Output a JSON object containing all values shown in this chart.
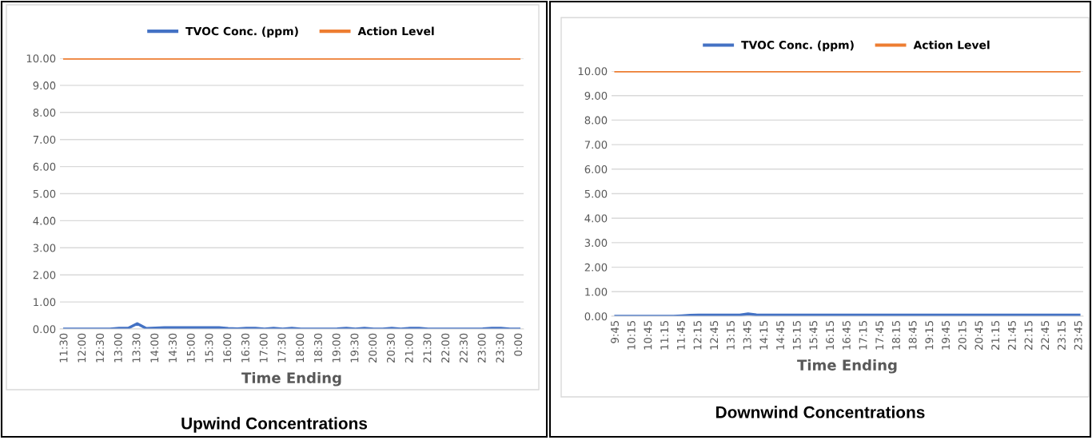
{
  "chart_data": [
    {
      "type": "line",
      "title": "Upwind Concentrations",
      "xlabel": "Time Ending",
      "categories": [
        "11:30",
        null,
        "12:00",
        null,
        "12:30",
        null,
        "13:00",
        null,
        "13:30",
        null,
        "14:00",
        null,
        "14:30",
        null,
        "15:00",
        null,
        "15:30",
        null,
        "16:00",
        null,
        "16:30",
        null,
        "17:00",
        null,
        "17:30",
        null,
        "18:00",
        null,
        "18:30",
        null,
        "19:00",
        null,
        "19:30",
        null,
        "20:00",
        null,
        "20:30",
        null,
        "21:00",
        null,
        "21:30",
        null,
        "22:00",
        null,
        "22:30",
        null,
        "23:00",
        null,
        "23:30",
        null,
        "0:00"
      ],
      "series": [
        {
          "name": "TVOC Conc. (ppm)",
          "color": "#4472c4",
          "values": [
            0,
            0,
            0,
            0,
            0,
            0,
            0.03,
            0.03,
            0.2,
            0.02,
            0.04,
            0.05,
            0.05,
            0.05,
            0.05,
            0.05,
            0.05,
            0.05,
            0.02,
            0.01,
            0.03,
            0.03,
            0,
            0.03,
            0,
            0.03,
            0,
            0,
            0,
            0,
            0.01,
            0.03,
            0,
            0.03,
            0,
            0,
            0.03,
            0,
            0.03,
            0.03,
            0,
            0,
            0,
            0,
            0,
            0,
            0.01,
            0.03,
            0.03,
            0,
            0
          ]
        },
        {
          "name": "Action Level",
          "color": "#ed7d31",
          "values": [
            10,
            10,
            10,
            10,
            10,
            10,
            10,
            10,
            10,
            10,
            10,
            10,
            10,
            10,
            10,
            10,
            10,
            10,
            10,
            10,
            10,
            10,
            10,
            10,
            10,
            10,
            10,
            10,
            10,
            10,
            10,
            10,
            10,
            10,
            10,
            10,
            10,
            10,
            10,
            10,
            10,
            10,
            10,
            10,
            10,
            10,
            10,
            10,
            10,
            10,
            10
          ]
        }
      ],
      "ylim": [
        0,
        10
      ],
      "yticks": [
        {
          "value": 0,
          "label": "0.00"
        },
        {
          "value": 1,
          "label": "1.00"
        },
        {
          "value": 2,
          "label": "2.00"
        },
        {
          "value": 3,
          "label": "3.00"
        },
        {
          "value": 4,
          "label": "4.00"
        },
        {
          "value": 5,
          "label": "5.00"
        },
        {
          "value": 6,
          "label": "6.00"
        },
        {
          "value": 7,
          "label": "7.00"
        },
        {
          "value": 8,
          "label": "8.00"
        },
        {
          "value": 9,
          "label": "9.00"
        },
        {
          "value": 10,
          "label": "10.00"
        }
      ],
      "grid": "y",
      "legend": "top",
      "marker": "none",
      "line_style": "solid"
    },
    {
      "type": "line",
      "title": "Downwind Concentrations",
      "xlabel": "Time Ending",
      "categories": [
        "9:45",
        null,
        "10:15",
        null,
        "10:45",
        null,
        "11:15",
        null,
        "11:45",
        null,
        "12:15",
        null,
        "12:45",
        null,
        "13:15",
        null,
        "13:45",
        null,
        "14:15",
        null,
        "14:45",
        null,
        "15:15",
        null,
        "15:45",
        null,
        "16:15",
        null,
        "16:45",
        null,
        "17:15",
        null,
        "17:45",
        null,
        "18:15",
        null,
        "18:45",
        null,
        "19:15",
        null,
        "19:45",
        null,
        "20:15",
        null,
        "20:45",
        null,
        "21:15",
        null,
        "21:45",
        null,
        "22:15",
        null,
        "22:45",
        null,
        "23:15",
        null,
        "23:45"
      ],
      "series": [
        {
          "name": "TVOC Conc. (ppm)",
          "color": "#4472c4",
          "values": [
            0,
            0,
            0,
            0,
            0,
            0,
            0,
            0,
            0.02,
            0.04,
            0.05,
            0.05,
            0.05,
            0.05,
            0.05,
            0.05,
            0.1,
            0.06,
            0.05,
            0.05,
            0.05,
            0.05,
            0.05,
            0.05,
            0.05,
            0.05,
            0.05,
            0.05,
            0.05,
            0.05,
            0.05,
            0.05,
            0.05,
            0.05,
            0.05,
            0.05,
            0.05,
            0.05,
            0.05,
            0.05,
            0.05,
            0.05,
            0.05,
            0.05,
            0.05,
            0.05,
            0.05,
            0.05,
            0.05,
            0.05,
            0.05,
            0.05,
            0.05,
            0.05,
            0.05,
            0.05,
            0.05
          ]
        },
        {
          "name": "Action Level",
          "color": "#ed7d31",
          "values": [
            10,
            10,
            10,
            10,
            10,
            10,
            10,
            10,
            10,
            10,
            10,
            10,
            10,
            10,
            10,
            10,
            10,
            10,
            10,
            10,
            10,
            10,
            10,
            10,
            10,
            10,
            10,
            10,
            10,
            10,
            10,
            10,
            10,
            10,
            10,
            10,
            10,
            10,
            10,
            10,
            10,
            10,
            10,
            10,
            10,
            10,
            10,
            10,
            10,
            10,
            10,
            10,
            10,
            10,
            10,
            10,
            10
          ]
        }
      ],
      "ylim": [
        0,
        10
      ],
      "yticks": [
        {
          "value": 0,
          "label": "0.00"
        },
        {
          "value": 1,
          "label": "1.00"
        },
        {
          "value": 2,
          "label": "2.00"
        },
        {
          "value": 3,
          "label": "3.00"
        },
        {
          "value": 4,
          "label": "4.00"
        },
        {
          "value": 5,
          "label": "5.00"
        },
        {
          "value": 6,
          "label": "6.00"
        },
        {
          "value": 7,
          "label": "7.00"
        },
        {
          "value": 8,
          "label": "8.00"
        },
        {
          "value": 9,
          "label": "9.00"
        },
        {
          "value": 10,
          "label": "10.00"
        }
      ],
      "grid": "y",
      "legend": "top",
      "marker": "none",
      "line_style": "solid"
    }
  ]
}
